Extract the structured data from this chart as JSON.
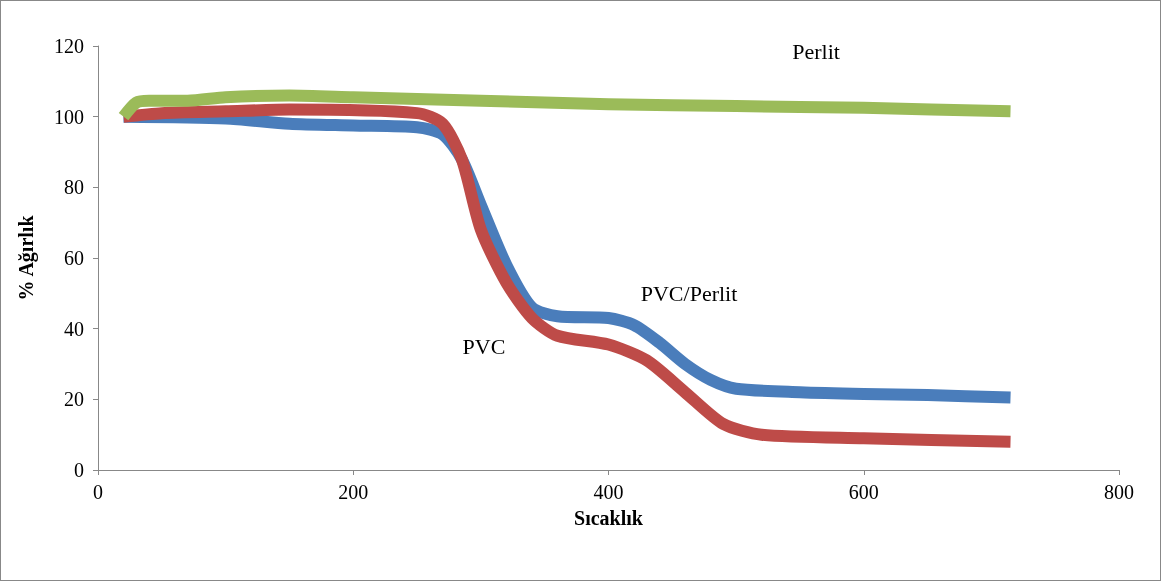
{
  "chart_data": {
    "type": "line",
    "xlabel": "Sıcaklık",
    "ylabel": "% Ağırlık",
    "xlim": [
      0,
      800
    ],
    "xticks": [
      0,
      200,
      400,
      600,
      800
    ],
    "ylim": [
      0,
      120
    ],
    "yticks": [
      0,
      20,
      40,
      60,
      80,
      100,
      120
    ],
    "grid": false,
    "legend": false,
    "marker": "none",
    "line_style": "solid",
    "series": [
      {
        "name": "PVC/Perlit",
        "color": "#4a7dbb",
        "x": [
          20,
          100,
          150,
          200,
          250,
          270,
          285,
          300,
          320,
          340,
          360,
          400,
          420,
          440,
          460,
          480,
          500,
          550,
          600,
          650,
          715
        ],
        "values": [
          100,
          99.5,
          98,
          97.5,
          97,
          95,
          88,
          75,
          58,
          46,
          43.5,
          43,
          41,
          36,
          30,
          25.5,
          23,
          22,
          21.5,
          21.2,
          20.5
        ]
      },
      {
        "name": "PVC",
        "color": "#be4b48",
        "x": [
          20,
          50,
          100,
          150,
          250,
          270,
          285,
          300,
          320,
          340,
          360,
          400,
          430,
          460,
          490,
          520,
          600,
          715
        ],
        "values": [
          100,
          101,
          101.5,
          102,
          101,
          98,
          88,
          68,
          53,
          43,
          38,
          35.5,
          31,
          22,
          13,
          10,
          9,
          8
        ]
      },
      {
        "name": "Perlit",
        "color": "#9bbb59",
        "x": [
          20,
          30,
          40,
          70,
          100,
          150,
          200,
          300,
          400,
          500,
          600,
          715
        ],
        "values": [
          100,
          104,
          104.5,
          104.5,
          105.5,
          106,
          105.5,
          104.5,
          103.5,
          103,
          102.5,
          101.5
        ]
      }
    ]
  }
}
